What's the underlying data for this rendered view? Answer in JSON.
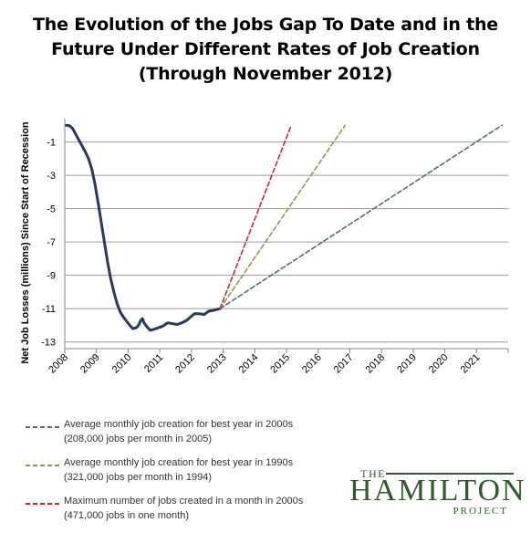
{
  "chart_data": {
    "type": "line",
    "title_lines": [
      "The Evolution of the Jobs Gap To Date and in the",
      "Future Under Different Rates of Job Creation",
      "(Through November 2012)"
    ],
    "xlabel": "",
    "ylabel": "Net Job Losses (millions) Since Start of Recession",
    "xlim": [
      2008,
      2022
    ],
    "ylim": [
      -13.4,
      0.4
    ],
    "x_ticks": [
      "2008",
      "2009",
      "2010",
      "2011",
      "2012",
      "2013",
      "2014",
      "2015",
      "2016",
      "2017",
      "2018",
      "2019",
      "2020",
      "2021"
    ],
    "y_ticks": [
      "-1",
      "-3",
      "-5",
      "-7",
      "-9",
      "-11",
      "-13"
    ],
    "grid": "horizontal",
    "series": [
      {
        "style": "solid",
        "color": "#243b5b",
        "points": [
          [
            2008.05,
            0.0
          ],
          [
            2008.15,
            -0.02
          ],
          [
            2008.25,
            -0.2
          ],
          [
            2008.35,
            -0.55
          ],
          [
            2008.45,
            -0.9
          ],
          [
            2008.55,
            -1.25
          ],
          [
            2008.65,
            -1.6
          ],
          [
            2008.75,
            -2.0
          ],
          [
            2008.85,
            -2.6
          ],
          [
            2008.95,
            -3.5
          ],
          [
            2009.05,
            -4.6
          ],
          [
            2009.15,
            -5.8
          ],
          [
            2009.25,
            -7.0
          ],
          [
            2009.35,
            -8.2
          ],
          [
            2009.45,
            -9.2
          ],
          [
            2009.55,
            -10.0
          ],
          [
            2009.65,
            -10.7
          ],
          [
            2009.75,
            -11.2
          ],
          [
            2009.85,
            -11.5
          ],
          [
            2009.95,
            -11.75
          ],
          [
            2010.05,
            -12.0
          ],
          [
            2010.15,
            -12.2
          ],
          [
            2010.25,
            -12.15
          ],
          [
            2010.33,
            -12.0
          ],
          [
            2010.4,
            -11.7
          ],
          [
            2010.45,
            -11.6
          ],
          [
            2010.5,
            -11.85
          ],
          [
            2010.6,
            -12.1
          ],
          [
            2010.7,
            -12.3
          ],
          [
            2010.8,
            -12.25
          ],
          [
            2010.95,
            -12.15
          ],
          [
            2011.1,
            -12.05
          ],
          [
            2011.25,
            -11.85
          ],
          [
            2011.4,
            -11.9
          ],
          [
            2011.55,
            -11.95
          ],
          [
            2011.7,
            -11.85
          ],
          [
            2011.85,
            -11.7
          ],
          [
            2012.0,
            -11.45
          ],
          [
            2012.1,
            -11.3
          ],
          [
            2012.25,
            -11.3
          ],
          [
            2012.4,
            -11.35
          ],
          [
            2012.55,
            -11.15
          ],
          [
            2012.7,
            -11.1
          ],
          [
            2012.9,
            -11.0
          ]
        ]
      },
      {
        "name": "Average monthly job creation for best year in 2000s",
        "name2": "(208,000 jobs per month in 2005)",
        "style": "dashed",
        "color": "#5a6781",
        "points": [
          [
            2012.9,
            -11.0
          ],
          [
            2021.8,
            0.0
          ]
        ]
      },
      {
        "name": "Average monthly job creation for best year in 1990s",
        "name2": "(321,000 jobs per month in 1994)",
        "style": "dashed",
        "color": "#8a9a54",
        "points": [
          [
            2012.9,
            -11.0
          ],
          [
            2016.85,
            0.0
          ]
        ]
      },
      {
        "name": "Maximum number of jobs created in a month in 2000s",
        "name2": "(471,000 jobs in one month)",
        "style": "dashed",
        "color": "#cc2a2a",
        "points": [
          [
            2012.9,
            -11.0
          ],
          [
            2015.15,
            0.0
          ]
        ]
      }
    ]
  },
  "legend": [
    {
      "line1": "Average monthly job creation for best year in 2000s",
      "line2": "(208,000 jobs per month in 2005)",
      "color": "#5a6781"
    },
    {
      "line1": "Average monthly job creation for best year in 1990s",
      "line2": "(321,000 jobs per month in 1994)",
      "color": "#8a9a54"
    },
    {
      "line1": "Maximum number of jobs created in a month in 2000s",
      "line2": "(471,000 jobs in one month)",
      "color": "#cc2a2a"
    }
  ],
  "logo": {
    "the": "THE",
    "main": "HAMILTON",
    "project": "PROJECT"
  }
}
